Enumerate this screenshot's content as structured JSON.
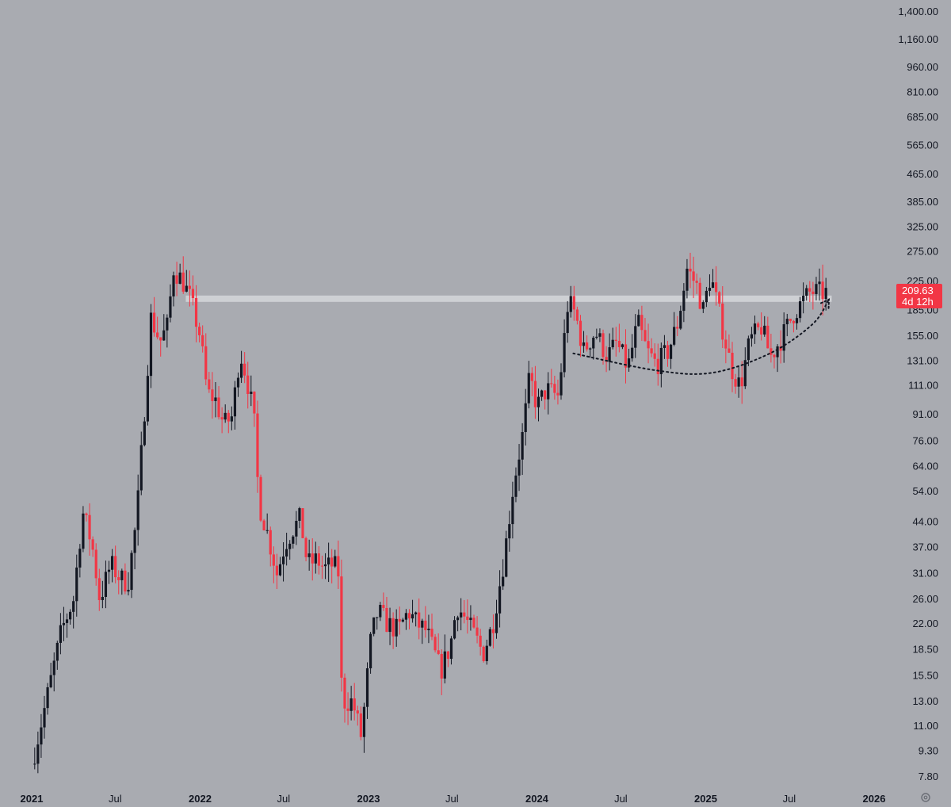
{
  "chart_data": {
    "type": "candlestick",
    "title": "",
    "xlabel": "",
    "ylabel": "",
    "y_scale": "log",
    "ylim": [
      7.2,
      1500
    ],
    "y_tick_labels": [
      "1,400.00",
      "1,160.00",
      "960.00",
      "810.00",
      "685.00",
      "565.00",
      "465.00",
      "385.00",
      "325.00",
      "275.00",
      "225.00",
      "185.00",
      "155.00",
      "131.00",
      "111.00",
      "91.00",
      "76.00",
      "64.00",
      "54.00",
      "44.00",
      "37.00",
      "31.00",
      "26.00",
      "22.00",
      "18.50",
      "15.50",
      "13.00",
      "11.00",
      "9.30",
      "7.80"
    ],
    "x_tick_labels": [
      {
        "label": "2021",
        "date": "2021-01-01",
        "bold": true
      },
      {
        "label": "Jul",
        "date": "2021-07-01",
        "bold": false
      },
      {
        "label": "2022",
        "date": "2022-01-01",
        "bold": true
      },
      {
        "label": "Jul",
        "date": "2022-07-01",
        "bold": false
      },
      {
        "label": "2023",
        "date": "2023-01-01",
        "bold": true
      },
      {
        "label": "Jul",
        "date": "2023-07-01",
        "bold": false
      },
      {
        "label": "2024",
        "date": "2024-01-01",
        "bold": true
      },
      {
        "label": "Jul",
        "date": "2024-07-01",
        "bold": false
      },
      {
        "label": "2025",
        "date": "2025-01-01",
        "bold": true
      },
      {
        "label": "Jul",
        "date": "2025-07-01",
        "bold": false
      },
      {
        "label": "2026",
        "date": "2026-01-01",
        "bold": true
      }
    ],
    "xlim": [
      "2020-12-15",
      "2026-03-01"
    ],
    "last_price": {
      "value": "209.63",
      "countdown": "4d 12h",
      "color": "#f23645"
    },
    "colors": {
      "up": "#131722",
      "down": "#f23645"
    },
    "annotations": [
      {
        "type": "horizontal_resistance_zone",
        "value": 200,
        "from": "2021-12-01",
        "to": "2025-10-01",
        "color": "#d5d6da"
      },
      {
        "type": "dotted_curved_arrow",
        "points": [
          [
            "2024-03-20",
            138
          ],
          [
            "2024-09-15",
            123
          ],
          [
            "2025-01-15",
            121
          ],
          [
            "2025-05-20",
            138
          ],
          [
            "2025-08-20",
            168
          ],
          [
            "2025-09-25",
            199
          ]
        ]
      }
    ],
    "anchors": [
      [
        "2021-01-05",
        8.5
      ],
      [
        "2021-02-10",
        14
      ],
      [
        "2021-03-10",
        21
      ],
      [
        "2021-04-05",
        26
      ],
      [
        "2021-04-25",
        47
      ],
      [
        "2021-05-15",
        38
      ],
      [
        "2021-06-01",
        26
      ],
      [
        "2021-06-25",
        33
      ],
      [
        "2021-07-15",
        30
      ],
      [
        "2021-08-01",
        29
      ],
      [
        "2021-08-20",
        45
      ],
      [
        "2021-09-05",
        90
      ],
      [
        "2021-09-20",
        175
      ],
      [
        "2021-10-10",
        150
      ],
      [
        "2021-10-25",
        165
      ],
      [
        "2021-11-08",
        245
      ],
      [
        "2021-11-28",
        225
      ],
      [
        "2021-12-15",
        198
      ],
      [
        "2022-01-05",
        155
      ],
      [
        "2022-01-20",
        105
      ],
      [
        "2022-02-05",
        102
      ],
      [
        "2022-02-25",
        85
      ],
      [
        "2022-03-15",
        90
      ],
      [
        "2022-04-01",
        140
      ],
      [
        "2022-04-15",
        118
      ],
      [
        "2022-05-01",
        90
      ],
      [
        "2022-05-12",
        50
      ],
      [
        "2022-06-01",
        40
      ],
      [
        "2022-06-20",
        31
      ],
      [
        "2022-07-08",
        38
      ],
      [
        "2022-07-25",
        42
      ],
      [
        "2022-08-10",
        45
      ],
      [
        "2022-08-25",
        33
      ],
      [
        "2022-09-15",
        34
      ],
      [
        "2022-10-01",
        32
      ],
      [
        "2022-10-20",
        33
      ],
      [
        "2022-11-01",
        31
      ],
      [
        "2022-11-08",
        13
      ],
      [
        "2022-12-01",
        13
      ],
      [
        "2022-12-20",
        10.2
      ],
      [
        "2023-01-10",
        20
      ],
      [
        "2023-01-25",
        24
      ],
      [
        "2023-02-15",
        22
      ],
      [
        "2023-03-10",
        21
      ],
      [
        "2023-04-01",
        24
      ],
      [
        "2023-04-20",
        22
      ],
      [
        "2023-05-10",
        21
      ],
      [
        "2023-06-10",
        16
      ],
      [
        "2023-07-01",
        19
      ],
      [
        "2023-07-15",
        25
      ],
      [
        "2023-08-01",
        23
      ],
      [
        "2023-08-25",
        20
      ],
      [
        "2023-09-10",
        18
      ],
      [
        "2023-10-01",
        22
      ],
      [
        "2023-10-25",
        34
      ],
      [
        "2023-11-15",
        57
      ],
      [
        "2023-12-05",
        80
      ],
      [
        "2023-12-20",
        118
      ],
      [
        "2024-01-05",
        96
      ],
      [
        "2024-01-25",
        108
      ],
      [
        "2024-02-20",
        103
      ],
      [
        "2024-03-12",
        196
      ],
      [
        "2024-03-28",
        180
      ],
      [
        "2024-04-15",
        140
      ],
      [
        "2024-05-10",
        160
      ],
      [
        "2024-06-05",
        135
      ],
      [
        "2024-06-25",
        148
      ],
      [
        "2024-07-20",
        125
      ],
      [
        "2024-08-10",
        170
      ],
      [
        "2024-08-30",
        140
      ],
      [
        "2024-09-20",
        128
      ],
      [
        "2024-10-15",
        140
      ],
      [
        "2024-11-05",
        170
      ],
      [
        "2024-11-25",
        245
      ],
      [
        "2024-12-15",
        220
      ],
      [
        "2024-12-30",
        185
      ],
      [
        "2025-01-15",
        235
      ],
      [
        "2025-02-05",
        175
      ],
      [
        "2025-03-01",
        125
      ],
      [
        "2025-03-20",
        110
      ],
      [
        "2025-04-10",
        150
      ],
      [
        "2025-05-05",
        165
      ],
      [
        "2025-05-25",
        135
      ],
      [
        "2025-06-20",
        155
      ],
      [
        "2025-07-15",
        182
      ],
      [
        "2025-08-05",
        198
      ],
      [
        "2025-08-20",
        210
      ],
      [
        "2025-09-10",
        208
      ]
    ]
  },
  "settings_icon": "gear-icon"
}
